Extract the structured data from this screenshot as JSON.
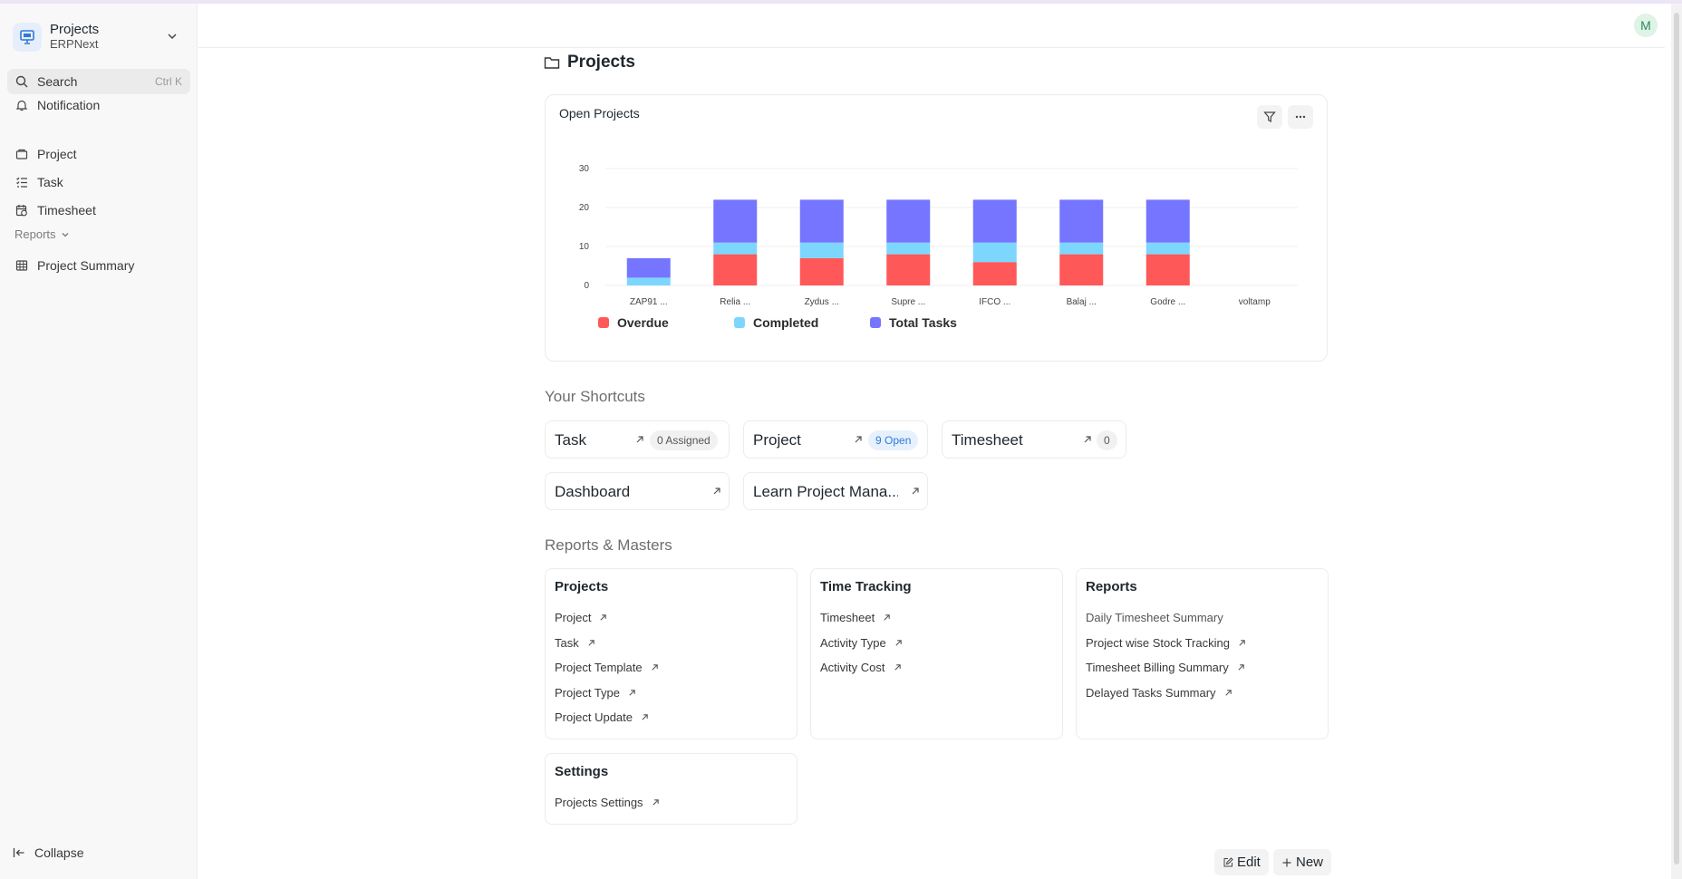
{
  "app": {
    "title": "Projects",
    "subtitle": "ERPNext"
  },
  "sidebar": {
    "search": {
      "label": "Search",
      "shortcut": "Ctrl K"
    },
    "notification": "Notification",
    "items": [
      {
        "label": "Project",
        "icon": "folder-icon"
      },
      {
        "label": "Task",
        "icon": "checklist-icon"
      },
      {
        "label": "Timesheet",
        "icon": "calendar-clock-icon"
      }
    ],
    "reports_section": "Reports",
    "report_items": [
      {
        "label": "Project Summary",
        "icon": "table-icon"
      }
    ],
    "collapse": "Collapse"
  },
  "user": {
    "avatar_initial": "M"
  },
  "page": {
    "title": "Projects"
  },
  "chart_card": {
    "title": "Open Projects"
  },
  "chart_data": {
    "type": "bar",
    "stacked": true,
    "categories": [
      "ZAP91 ...",
      "Relia ...",
      "Zydus ...",
      "Supre ...",
      "IFCO ...",
      "Balaj ...",
      "Godre ...",
      "voltamp"
    ],
    "series": [
      {
        "name": "Overdue",
        "color": "#ff5858",
        "values": [
          0,
          8,
          7,
          8,
          6,
          8,
          8,
          0
        ]
      },
      {
        "name": "Completed",
        "color": "#7cd6fd",
        "values": [
          2,
          3,
          4,
          3,
          5,
          3,
          3,
          0
        ]
      },
      {
        "name": "Total Tasks",
        "color": "#7575ff",
        "values": [
          5,
          11,
          11,
          11,
          11,
          11,
          11,
          0
        ]
      }
    ],
    "y_ticks": [
      0,
      10,
      20,
      30
    ],
    "ylim": [
      0,
      30
    ],
    "grid": true,
    "legend": "bottom-left"
  },
  "shortcuts_title": "Your Shortcuts",
  "shortcuts": [
    {
      "label": "Task",
      "badge": "0 Assigned"
    },
    {
      "label": "Project",
      "badge": "9 Open"
    },
    {
      "label": "Timesheet",
      "badge": "0"
    },
    {
      "label": "Dashboard"
    },
    {
      "label": "Learn Project Mana..."
    }
  ],
  "reports_title": "Reports & Masters",
  "cards": [
    {
      "title": "Projects",
      "links": [
        "Project",
        "Task",
        "Project Template",
        "Project Type",
        "Project Update"
      ]
    },
    {
      "title": "Time Tracking",
      "links": [
        "Timesheet",
        "Activity Type",
        "Activity Cost"
      ]
    },
    {
      "title": "Reports",
      "links": [
        "Daily Timesheet Summary",
        "Project wise Stock Tracking",
        "Timesheet Billing Summary",
        "Delayed Tasks Summary"
      ]
    },
    {
      "title": "Settings",
      "links": [
        "Projects Settings"
      ]
    }
  ],
  "actions": {
    "edit": "Edit",
    "new": "New"
  }
}
